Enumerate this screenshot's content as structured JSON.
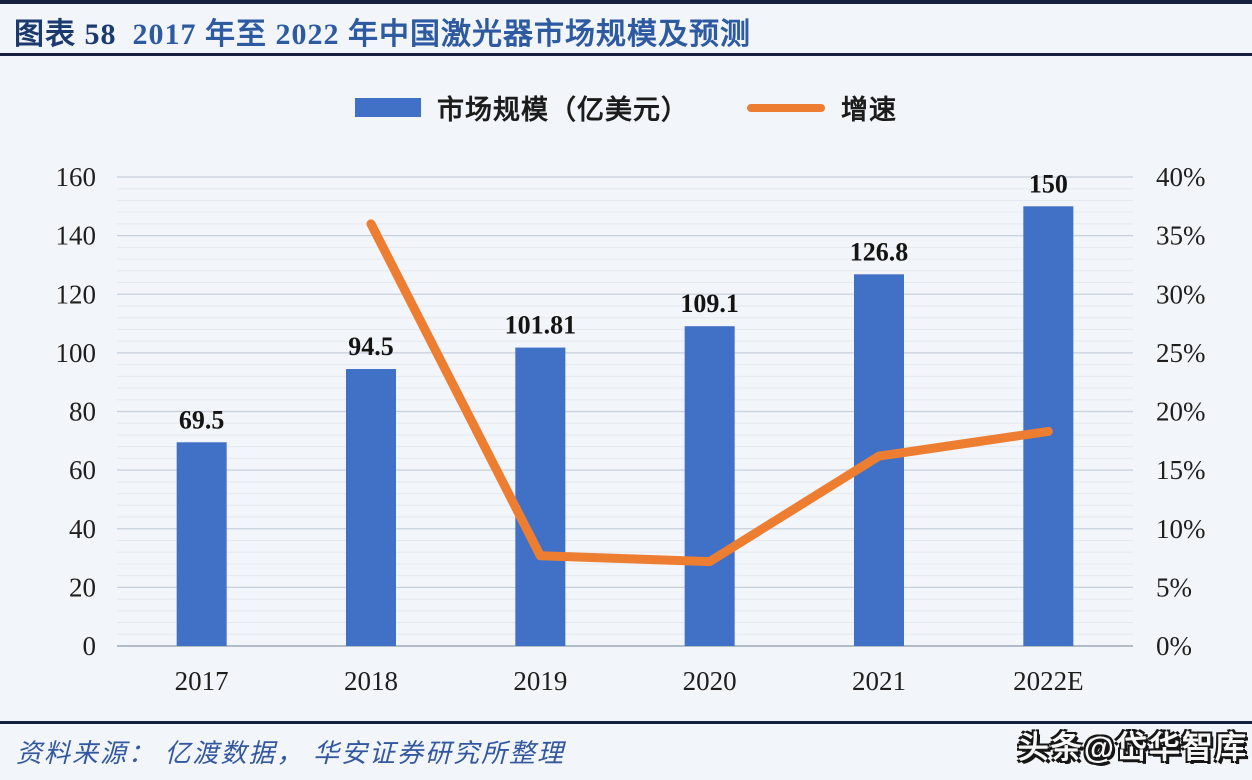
{
  "header": {
    "tag": "图表 58",
    "title": "2017 年至 2022 年中国激光器市场规模及预测"
  },
  "chart_data": {
    "type": "combo-bar-line",
    "categories": [
      "2017",
      "2018",
      "2019",
      "2020",
      "2021",
      "2022E"
    ],
    "series": [
      {
        "name": "市场规模（亿美元）",
        "type": "bar",
        "axis": "left",
        "color": "#4171c6",
        "values": [
          69.5,
          94.5,
          101.81,
          109.1,
          126.8,
          150
        ],
        "labels": [
          "69.5",
          "94.5",
          "101.81",
          "109.1",
          "126.8",
          "150"
        ]
      },
      {
        "name": "增速",
        "type": "line",
        "axis": "right",
        "color": "#ed7d31",
        "values": [
          null,
          36.0,
          7.7,
          7.2,
          16.2,
          18.3
        ]
      }
    ],
    "left_axis": {
      "min": 0,
      "max": 160,
      "step": 20,
      "ticks": [
        "0",
        "20",
        "40",
        "60",
        "80",
        "100",
        "120",
        "140",
        "160"
      ]
    },
    "right_axis": {
      "min": 0,
      "max": 40,
      "step": 5,
      "ticks": [
        "0%",
        "5%",
        "10%",
        "15%",
        "20%",
        "25%",
        "30%",
        "35%",
        "40%"
      ]
    },
    "grid": {
      "major": true,
      "minor": true,
      "minor_unit_left": 4
    },
    "legend_position": "top"
  },
  "footer": {
    "source": "资料来源： 亿渡数据， 华安证券研究所整理",
    "watermark": "头条@岱华智库"
  }
}
